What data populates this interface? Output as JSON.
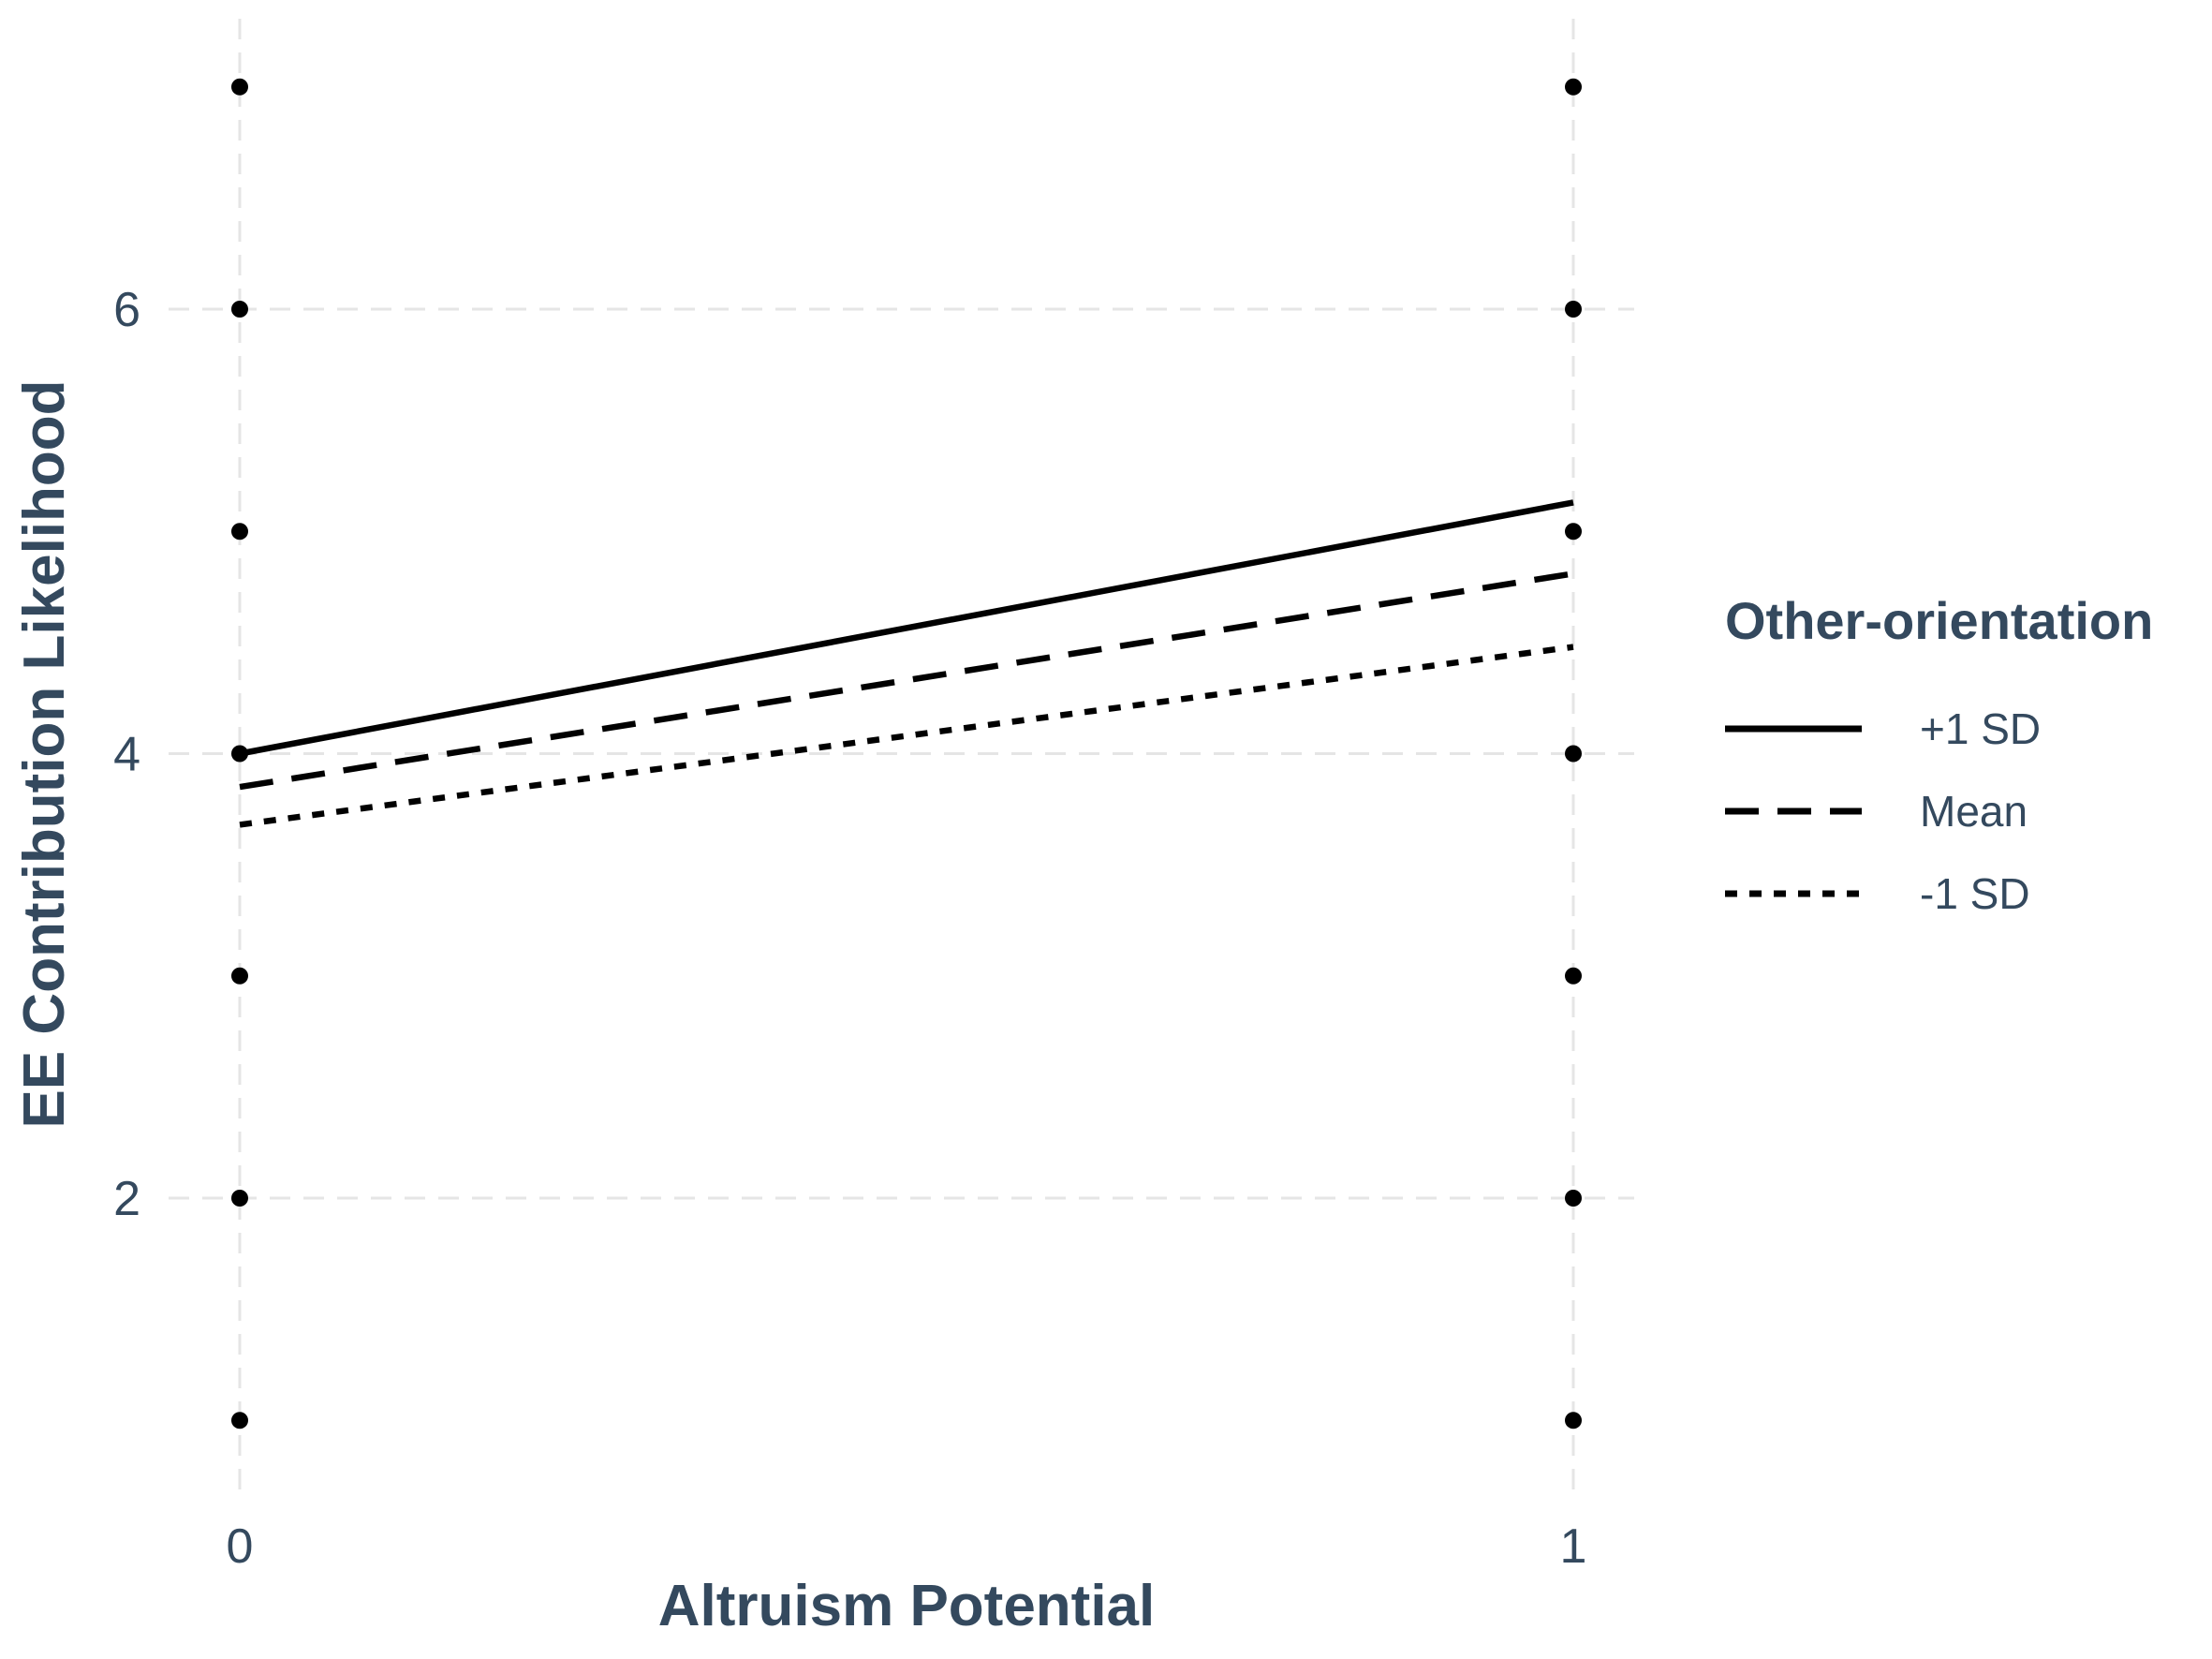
{
  "chart_data": {
    "type": "line",
    "xlabel": "Altruism Potential",
    "ylabel": "EE Contribution Likelihood",
    "x": [
      0,
      1
    ],
    "x_ticks": [
      "0",
      "1"
    ],
    "y_ticks": [
      "2",
      "4",
      "6"
    ],
    "xlim": [
      -0.05,
      1.05
    ],
    "ylim": [
      0.7,
      7.3
    ],
    "grid": true,
    "legend": {
      "title": "Other-orientation",
      "placement": "right"
    },
    "series": [
      {
        "name": "+1 SD",
        "values": [
          4.0,
          5.13
        ],
        "style": "solid"
      },
      {
        "name": "Mean",
        "values": [
          3.85,
          4.81
        ],
        "style": "dashed"
      },
      {
        "name": "-1 SD",
        "values": [
          3.68,
          4.48
        ],
        "style": "dotted"
      }
    ],
    "points": [
      {
        "x": 0,
        "y": 7
      },
      {
        "x": 0,
        "y": 6
      },
      {
        "x": 0,
        "y": 5
      },
      {
        "x": 0,
        "y": 4
      },
      {
        "x": 0,
        "y": 3
      },
      {
        "x": 0,
        "y": 2
      },
      {
        "x": 0,
        "y": 1
      },
      {
        "x": 1,
        "y": 7
      },
      {
        "x": 1,
        "y": 6
      },
      {
        "x": 1,
        "y": 5
      },
      {
        "x": 1,
        "y": 4
      },
      {
        "x": 1,
        "y": 3
      },
      {
        "x": 1,
        "y": 2
      },
      {
        "x": 1,
        "y": 1
      }
    ],
    "colors": {
      "lines": "#000000",
      "grid": "#e5e5e5",
      "text": "#34495e"
    }
  }
}
